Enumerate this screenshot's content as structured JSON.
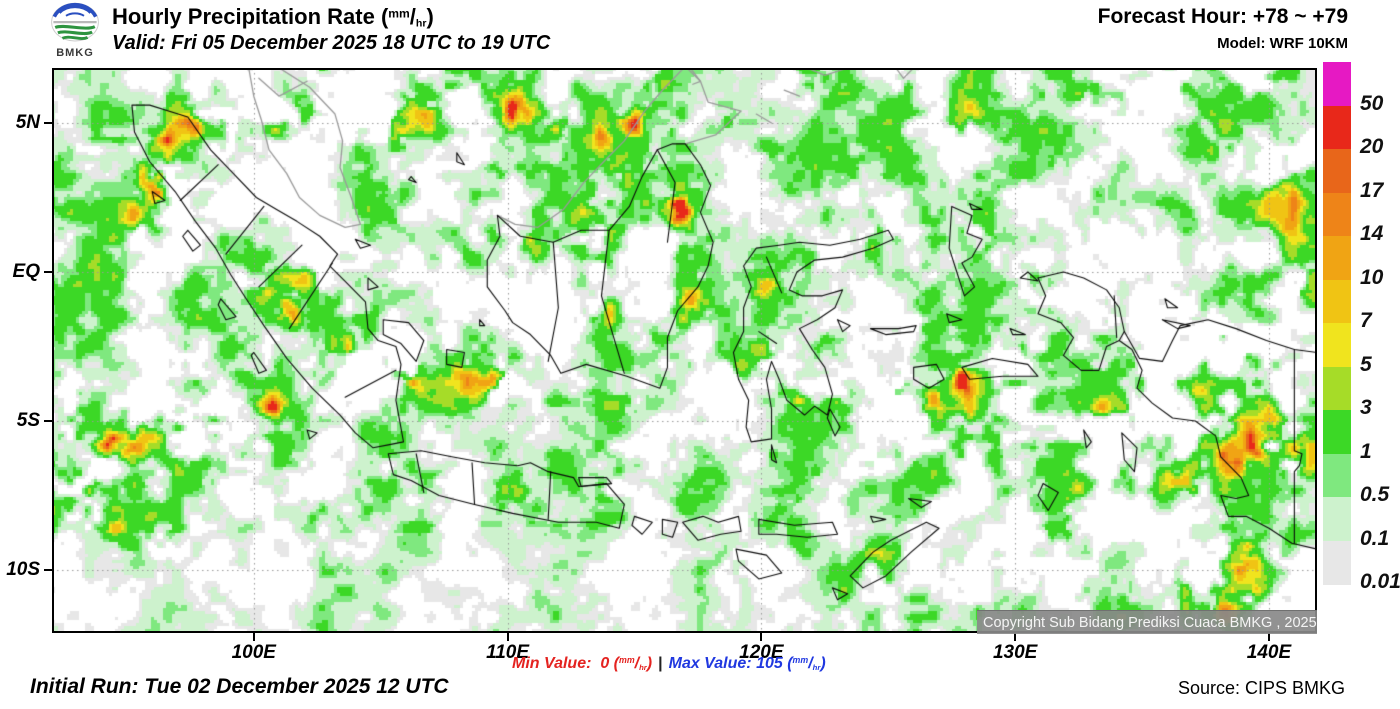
{
  "header": {
    "logo_caption": "BMKG",
    "title_prefix": "Hourly Precipitation Rate ",
    "valid": "Valid: Fri 05 December 2025 18 UTC to 19 UTC",
    "forecast_hour": "Forecast Hour: +78 ~ +79",
    "model": "Model: WRF 10KM"
  },
  "unit": {
    "open": "(",
    "sup": "mm",
    "slash": "/",
    "sub": "hr",
    "close": ")"
  },
  "footer": {
    "initial_run": "Initial Run: Tue 02 December 2025 12 UTC",
    "min_label": "Min Value:",
    "min_value": "0",
    "separator": "|",
    "max_label": "Max Value:",
    "max_value": "105",
    "source": "Source: CIPS BMKG"
  },
  "map": {
    "copyright": "Copyright Sub Bidang Prediksi Cuaca BMKG , 2025",
    "lat_ticks": [
      {
        "label": "5N",
        "deg": 5
      },
      {
        "label": "EQ",
        "deg": 0
      },
      {
        "label": "5S",
        "deg": -5
      },
      {
        "label": "10S",
        "deg": -10
      }
    ],
    "lon_ticks": [
      {
        "label": "100E",
        "deg": 100
      },
      {
        "label": "110E",
        "deg": 110
      },
      {
        "label": "120E",
        "deg": 120
      },
      {
        "label": "130E",
        "deg": 130
      },
      {
        "label": "140E",
        "deg": 140
      }
    ]
  },
  "colorbar": {
    "levels_mm_per_hr": [
      0.01,
      0.1,
      0.5,
      1,
      3,
      5,
      7,
      10,
      14,
      17,
      20,
      50
    ],
    "colors_low_to_high": [
      "#e7e7e7",
      "#cdf2cd",
      "#7fe87f",
      "#3cd826",
      "#a6dc28",
      "#f0e41e",
      "#f0c414",
      "#f0a414",
      "#ee8418",
      "#e8661a",
      "#e8281a",
      "#e619c3"
    ]
  },
  "map_data": {
    "type": "precipitation_rate_map",
    "extent": {
      "lon_min": 92.05,
      "lon_max": 141.9,
      "lat_min": -12.11,
      "lat_max": 6.85
    },
    "gridline_lons": [
      100,
      110,
      120,
      130,
      140
    ],
    "gridline_lats": [
      5,
      0,
      -5,
      -10
    ],
    "seed": 20251205,
    "hotspots": [
      [
        96.0,
        3.0,
        0.5,
        0.5,
        13
      ],
      [
        95.5,
        2.0,
        0.7,
        0.8,
        4
      ],
      [
        96.5,
        4.4,
        0.4,
        0.4,
        9
      ],
      [
        97.8,
        4.9,
        0.5,
        0.4,
        15
      ],
      [
        99.0,
        4.6,
        0.4,
        0.4,
        11
      ],
      [
        100.8,
        5.1,
        0.5,
        0.5,
        15
      ],
      [
        102.3,
        5.4,
        0.5,
        0.4,
        11
      ],
      [
        103.9,
        5.2,
        0.6,
        0.5,
        16
      ],
      [
        105.4,
        4.8,
        0.5,
        0.4,
        11
      ],
      [
        106.9,
        5.4,
        0.4,
        0.4,
        9
      ],
      [
        108.3,
        5.9,
        0.5,
        0.4,
        8
      ],
      [
        110.2,
        5.5,
        0.6,
        0.5,
        13
      ],
      [
        111.9,
        5.1,
        0.4,
        0.4,
        8
      ],
      [
        104.0,
        5.3,
        4.5,
        1.1,
        2.5
      ],
      [
        97.0,
        3.6,
        1.0,
        1.6,
        3
      ],
      [
        114.9,
        5.0,
        0.4,
        0.4,
        11
      ],
      [
        113.6,
        4.4,
        0.4,
        0.4,
        8
      ],
      [
        116.1,
        6.7,
        0.4,
        0.4,
        10
      ],
      [
        116.9,
        4.8,
        0.35,
        0.5,
        10
      ],
      [
        118.6,
        5.3,
        0.4,
        0.35,
        10
      ],
      [
        120.0,
        4.3,
        0.5,
        0.35,
        8
      ],
      [
        116.8,
        2.3,
        0.35,
        0.7,
        13
      ],
      [
        114.3,
        2.7,
        1.2,
        1.0,
        3
      ],
      [
        113.8,
        0.2,
        0.4,
        0.4,
        10
      ],
      [
        113.9,
        -1.3,
        0.4,
        0.4,
        9
      ],
      [
        110.9,
        0.7,
        0.5,
        0.5,
        6
      ],
      [
        114.5,
        1.4,
        2.2,
        1.5,
        2
      ],
      [
        117.3,
        -1.2,
        0.5,
        0.6,
        5
      ],
      [
        122.4,
        6.4,
        0.7,
        0.5,
        6
      ],
      [
        121.4,
        6.8,
        0.4,
        0.4,
        8
      ],
      [
        125.8,
        6.4,
        0.6,
        0.5,
        5
      ],
      [
        127.9,
        5.2,
        0.9,
        0.7,
        3
      ],
      [
        133.8,
        6.1,
        1.1,
        0.7,
        4
      ],
      [
        136.3,
        6.3,
        0.6,
        0.5,
        8
      ],
      [
        139.4,
        6.6,
        1.0,
        0.6,
        6
      ],
      [
        140.8,
        3.0,
        1.2,
        1.2,
        3
      ],
      [
        137.8,
        4.6,
        1.0,
        0.8,
        3
      ],
      [
        101.5,
        -1.3,
        0.45,
        0.4,
        17
      ],
      [
        100.3,
        -0.5,
        0.6,
        0.5,
        5
      ],
      [
        102.4,
        -0.5,
        0.8,
        0.8,
        4
      ],
      [
        103.6,
        -2.8,
        0.5,
        0.4,
        9
      ],
      [
        105.3,
        -3.0,
        0.4,
        0.35,
        12
      ],
      [
        106.1,
        -3.6,
        0.45,
        0.4,
        15
      ],
      [
        104.7,
        -2.6,
        1.6,
        1.0,
        3
      ],
      [
        109.6,
        -3.7,
        0.5,
        0.4,
        11
      ],
      [
        108.8,
        -3.3,
        0.9,
        0.7,
        4
      ],
      [
        94.3,
        -5.8,
        0.35,
        0.35,
        14
      ],
      [
        95.2,
        -6.1,
        0.3,
        0.3,
        9
      ],
      [
        97.9,
        -4.9,
        0.4,
        0.35,
        15
      ],
      [
        99.0,
        -4.7,
        0.35,
        0.3,
        9
      ],
      [
        100.7,
        -4.5,
        0.3,
        0.3,
        10
      ],
      [
        97.0,
        -5.4,
        2.6,
        1.2,
        3
      ],
      [
        93.2,
        -7.6,
        1.0,
        1.0,
        4
      ],
      [
        92.6,
        -4.4,
        0.8,
        0.8,
        5
      ],
      [
        95.5,
        -8.8,
        1.5,
        1.0,
        2.5
      ],
      [
        107.4,
        -6.9,
        0.7,
        0.5,
        4
      ],
      [
        110.1,
        -7.4,
        0.5,
        0.4,
        4
      ],
      [
        113.9,
        -7.2,
        0.5,
        0.4,
        5
      ],
      [
        112.2,
        -6.2,
        0.6,
        0.5,
        4
      ],
      [
        115.5,
        -9.4,
        0.8,
        0.6,
        3
      ],
      [
        118.6,
        -9.7,
        0.8,
        0.6,
        4
      ],
      [
        121.2,
        -9.2,
        0.7,
        0.5,
        4
      ],
      [
        124.6,
        -9.8,
        0.8,
        0.6,
        3
      ],
      [
        118.9,
        -3.4,
        0.5,
        0.5,
        7
      ],
      [
        120.3,
        -2.8,
        0.5,
        0.4,
        6
      ],
      [
        121.6,
        -4.2,
        0.5,
        0.4,
        7
      ],
      [
        123.3,
        -4.4,
        0.6,
        0.5,
        6
      ],
      [
        125.2,
        -4.1,
        0.6,
        0.5,
        8
      ],
      [
        120.0,
        -0.5,
        0.7,
        0.7,
        3
      ],
      [
        122.5,
        0.8,
        0.8,
        0.5,
        4
      ],
      [
        124.8,
        1.2,
        0.6,
        0.4,
        5
      ],
      [
        126.8,
        -4.3,
        0.35,
        0.4,
        13
      ],
      [
        127.9,
        -3.7,
        0.35,
        0.55,
        15
      ],
      [
        130.3,
        -2.8,
        0.3,
        0.3,
        9
      ],
      [
        130.2,
        -3.8,
        0.5,
        0.4,
        8
      ],
      [
        133.3,
        -4.7,
        0.35,
        0.35,
        10
      ],
      [
        128.0,
        -5.0,
        3.5,
        1.4,
        2.5
      ],
      [
        125.6,
        -1.6,
        0.8,
        0.6,
        4
      ],
      [
        128.5,
        1.5,
        0.7,
        0.7,
        3
      ],
      [
        130.9,
        -0.5,
        0.8,
        0.6,
        4
      ],
      [
        137.8,
        -4.3,
        3.2,
        2.2,
        2.8
      ],
      [
        139.7,
        -5.8,
        0.5,
        0.45,
        15
      ],
      [
        138.6,
        -6.3,
        0.9,
        0.45,
        6
      ],
      [
        138.3,
        -2.0,
        0.5,
        0.4,
        7
      ],
      [
        134.3,
        -4.8,
        0.5,
        0.4,
        11
      ],
      [
        135.0,
        -3.2,
        0.7,
        0.5,
        6
      ],
      [
        140.6,
        -4.7,
        0.6,
        0.5,
        8
      ],
      [
        141.3,
        -6.2,
        0.8,
        0.7,
        5
      ],
      [
        136.9,
        -6.9,
        0.8,
        0.6,
        5
      ],
      [
        138.8,
        -9.6,
        0.5,
        0.45,
        13
      ],
      [
        139.3,
        -10.8,
        0.45,
        0.4,
        11
      ],
      [
        138.2,
        -11.4,
        0.5,
        0.4,
        8
      ],
      [
        138.8,
        -10.2,
        1.8,
        1.4,
        3
      ],
      [
        136.2,
        -10.5,
        1.0,
        0.8,
        3
      ],
      [
        133.5,
        -6.8,
        1.0,
        0.8,
        3
      ],
      [
        131.5,
        -8.2,
        0.9,
        0.7,
        3
      ],
      [
        141.6,
        -0.5,
        0.9,
        0.9,
        4
      ],
      [
        140.9,
        1.5,
        0.9,
        0.9,
        3
      ]
    ],
    "quiet_zones": [
      [
        92,
        107,
        -12.2,
        -8.8,
        0.45
      ],
      [
        107,
        123,
        -12.2,
        -8.6,
        0.5
      ],
      [
        92,
        96.5,
        4.5,
        7,
        0.55
      ],
      [
        116.5,
        122,
        2.8,
        6.9,
        0.55
      ],
      [
        108,
        113.5,
        -8.4,
        -4.5,
        0.6
      ],
      [
        118,
        124,
        -2.2,
        2.5,
        0.7
      ]
    ]
  }
}
